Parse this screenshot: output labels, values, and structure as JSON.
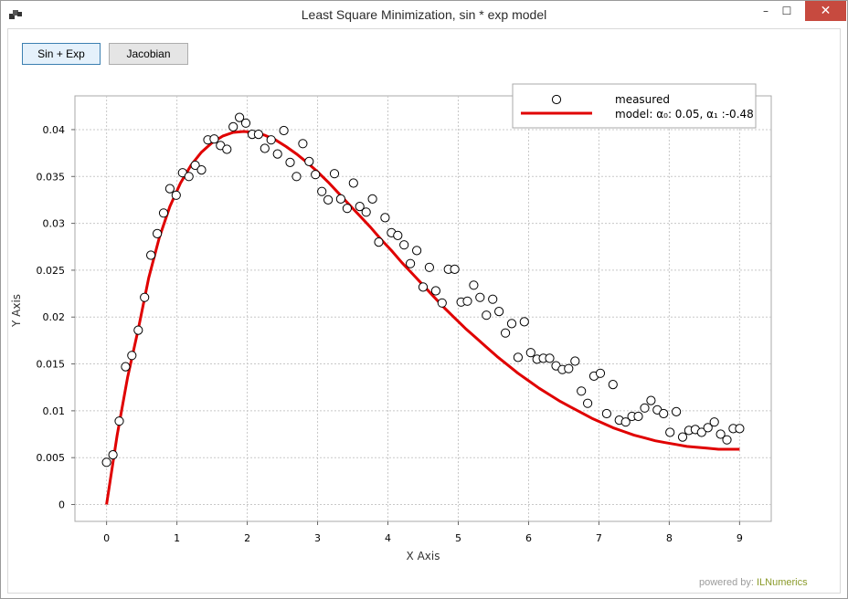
{
  "window": {
    "title": "Least Square Minimization, sin * exp model",
    "controls": {
      "minimize": "–",
      "maximize": "☐",
      "close": "✕"
    }
  },
  "toolbar": {
    "btn1_label": "Sin + Exp",
    "btn2_label": "Jacobian"
  },
  "footer": {
    "prefix": "powered by: ",
    "brand": "ILNumerics"
  },
  "colors": {
    "model_line": "#e00000",
    "markers": "#000000",
    "grid": "#c8c8c8",
    "close_button": "#c74a3f"
  },
  "chart_data": {
    "type": "scatter",
    "xlabel": "X Axis",
    "ylabel": "Y Axis",
    "xlim": [
      -0.45,
      9.45
    ],
    "ylim": [
      -0.0018,
      0.0436
    ],
    "xticks": [
      0,
      1,
      2,
      3,
      4,
      5,
      6,
      7,
      8,
      9
    ],
    "xtick_labels": [
      "0",
      "1",
      "2",
      "3",
      "4",
      "5",
      "6",
      "7",
      "8",
      "9"
    ],
    "yticks": [
      0,
      0.005,
      0.01,
      0.015,
      0.02,
      0.025,
      0.03,
      0.035,
      0.04
    ],
    "ytick_labels": [
      "0",
      "0.005",
      "0.01",
      "0.015",
      "0.02",
      "0.025",
      "0.03",
      "0.035",
      "0.04"
    ],
    "grid": true,
    "legend_placement": "top-right",
    "series": [
      {
        "name": "measured",
        "kind": "markers",
        "x": [
          0,
          0.09,
          0.18,
          0.27,
          0.36,
          0.45,
          0.54,
          0.63,
          0.72,
          0.81,
          0.9,
          0.99,
          1.08,
          1.17,
          1.26,
          1.35,
          1.44,
          1.53,
          1.62,
          1.71,
          1.8,
          1.89,
          1.98,
          2.07,
          2.16,
          2.25,
          2.34,
          2.43,
          2.52,
          2.61,
          2.7,
          2.79,
          2.88,
          2.97,
          3.06,
          3.15,
          3.24,
          3.33,
          3.42,
          3.51,
          3.6,
          3.69,
          3.78,
          3.87,
          3.96,
          4.05,
          4.14,
          4.23,
          4.32,
          4.41,
          4.5,
          4.59,
          4.68,
          4.77,
          4.86,
          4.95,
          5.04,
          5.13,
          5.22,
          5.31,
          5.4,
          5.49,
          5.58,
          5.67,
          5.76,
          5.85,
          5.94,
          6.03,
          6.12,
          6.21,
          6.3,
          6.39,
          6.48,
          6.57,
          6.66,
          6.75,
          6.84,
          6.93,
          7.02,
          7.11,
          7.2,
          7.29,
          7.38,
          7.47,
          7.56,
          7.65,
          7.74,
          7.83,
          7.92,
          8.01,
          8.1,
          8.19,
          8.28,
          8.37,
          8.46,
          8.55,
          8.64,
          8.73,
          8.82,
          8.91,
          9.0
        ],
        "y": [
          0.0045,
          0.0053,
          0.0089,
          0.0147,
          0.0159,
          0.0186,
          0.0221,
          0.0266,
          0.0289,
          0.0311,
          0.0337,
          0.033,
          0.0354,
          0.035,
          0.0362,
          0.0357,
          0.0389,
          0.039,
          0.0383,
          0.0379,
          0.0403,
          0.0413,
          0.0407,
          0.0395,
          0.0395,
          0.038,
          0.0389,
          0.0374,
          0.0399,
          0.0365,
          0.035,
          0.0385,
          0.0366,
          0.0352,
          0.0334,
          0.0325,
          0.0353,
          0.0326,
          0.0316,
          0.0343,
          0.0318,
          0.0312,
          0.0326,
          0.028,
          0.0306,
          0.029,
          0.0287,
          0.0277,
          0.0257,
          0.0271,
          0.0232,
          0.0253,
          0.0228,
          0.0215,
          0.0251,
          0.0251,
          0.0216,
          0.0217,
          0.0234,
          0.0221,
          0.0202,
          0.0219,
          0.0206,
          0.0183,
          0.0193,
          0.0157,
          0.0195,
          0.0162,
          0.0155,
          0.0156,
          0.0156,
          0.0148,
          0.0144,
          0.0145,
          0.0153,
          0.0121,
          0.0108,
          0.0137,
          0.014,
          0.0097,
          0.0128,
          0.009,
          0.0088,
          0.0094,
          0.0094,
          0.0103,
          0.0111,
          0.0101,
          0.0097,
          0.0077,
          0.0099,
          0.0072,
          0.0079,
          0.008,
          0.0077,
          0.0082,
          0.0088,
          0.0075,
          0.0069,
          0.0081,
          0.0081
        ]
      },
      {
        "name": "model: α₀: 0.05, α₁ :-0.48",
        "kind": "line",
        "x": [
          0,
          0.15,
          0.3,
          0.45,
          0.6,
          0.75,
          0.9,
          1.05,
          1.2,
          1.35,
          1.5,
          1.65,
          1.8,
          1.95,
          2.1,
          2.25,
          2.4,
          2.55,
          2.7,
          2.85,
          3.0,
          3.15,
          3.3,
          3.45,
          3.6,
          3.75,
          3.9,
          4.05,
          4.2,
          4.35,
          4.5,
          4.65,
          4.8,
          4.95,
          5.1,
          5.25,
          5.4,
          5.55,
          5.7,
          5.85,
          6.0,
          6.15,
          6.3,
          6.45,
          6.6,
          6.75,
          6.9,
          7.05,
          7.2,
          7.35,
          7.5,
          7.65,
          7.8,
          7.95,
          8.1,
          8.25,
          8.4,
          8.55,
          8.7,
          8.85,
          9.0
        ],
        "y": [
          0,
          0.0074,
          0.0136,
          0.0187,
          0.0242,
          0.0285,
          0.0318,
          0.0343,
          0.0362,
          0.0376,
          0.0386,
          0.0393,
          0.0397,
          0.0398,
          0.0397,
          0.0394,
          0.0389,
          0.0382,
          0.0374,
          0.0365,
          0.0355,
          0.0344,
          0.0332,
          0.032,
          0.0308,
          0.0296,
          0.0283,
          0.0271,
          0.0258,
          0.0246,
          0.0234,
          0.0222,
          0.021,
          0.0199,
          0.0188,
          0.0178,
          0.0168,
          0.0158,
          0.0149,
          0.014,
          0.0132,
          0.0124,
          0.0117,
          0.011,
          0.0104,
          0.0098,
          0.0092,
          0.0087,
          0.0082,
          0.0078,
          0.0074,
          0.0071,
          0.0068,
          0.0066,
          0.0064,
          0.0062,
          0.0061,
          0.006,
          0.0059,
          0.0059,
          0.0059
        ]
      }
    ]
  }
}
